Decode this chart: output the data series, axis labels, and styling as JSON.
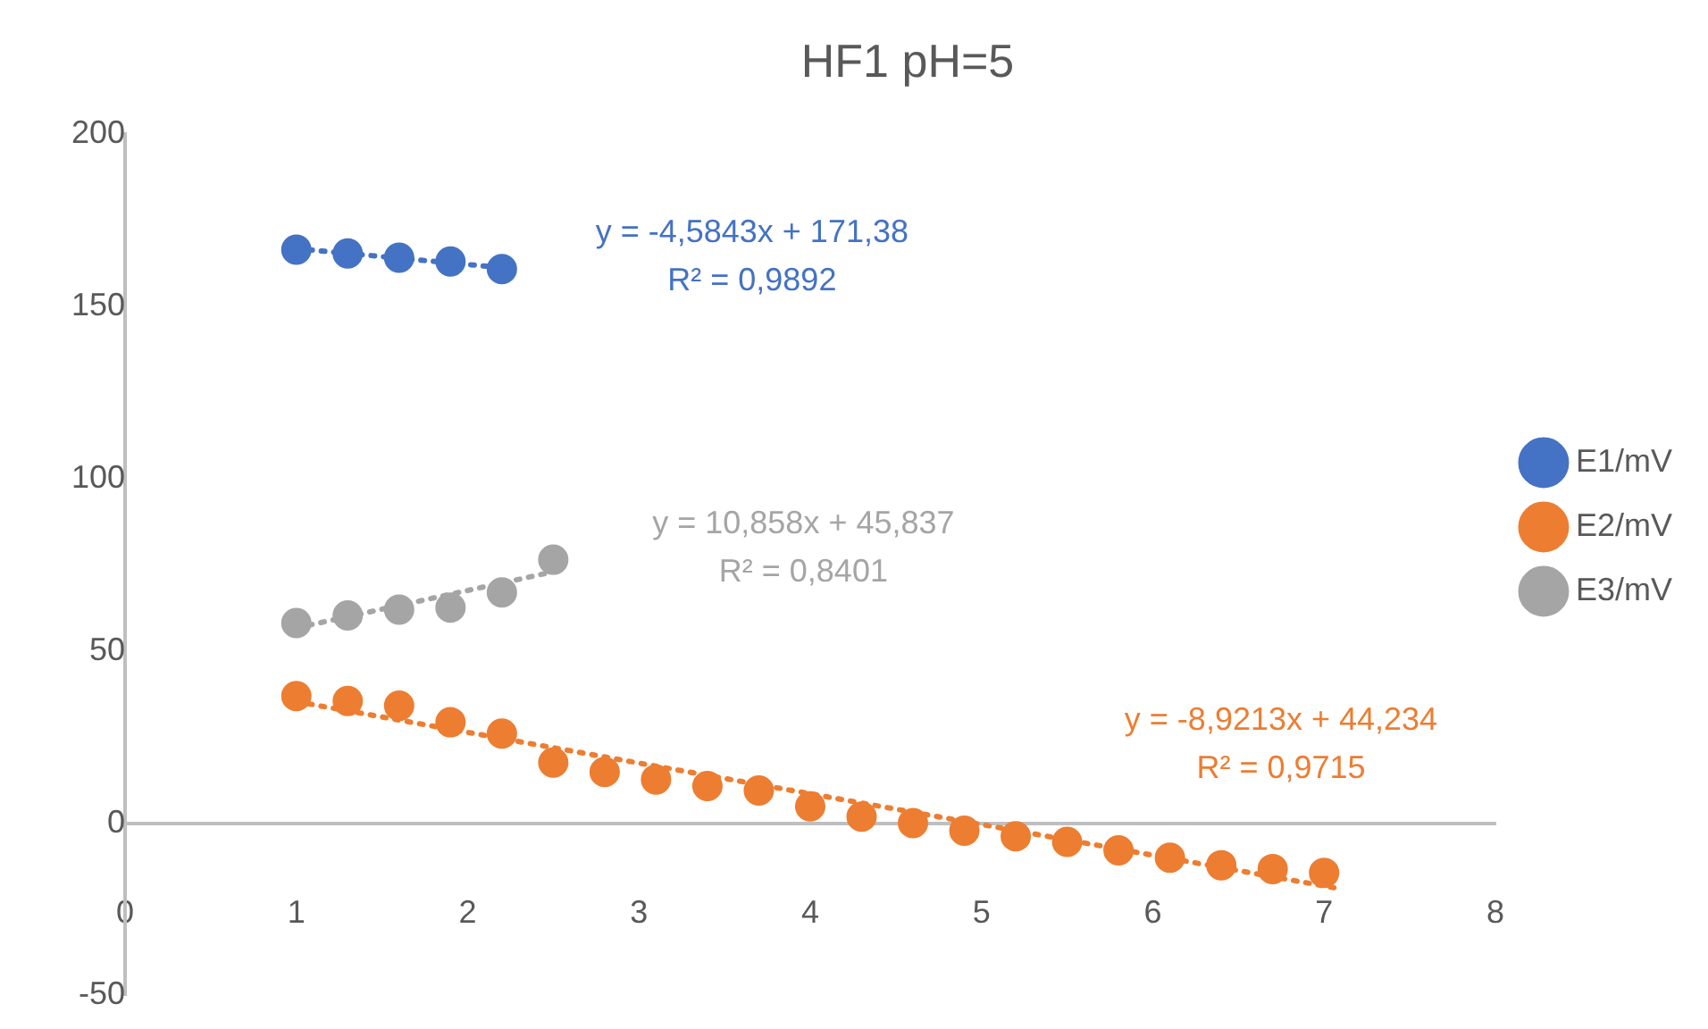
{
  "chart_data": {
    "type": "scatter",
    "title": "HF1 pH=5",
    "marker": "circle",
    "legend": "right",
    "grid": false,
    "xlim": [
      0,
      8
    ],
    "xticks": [
      0,
      1,
      2,
      3,
      4,
      5,
      6,
      7,
      8
    ],
    "ylim": [
      -50,
      200
    ],
    "yticks": [
      -50,
      0,
      50,
      100,
      150,
      200
    ],
    "series": [
      {
        "name": "E1/mV",
        "color": "#4472c4",
        "x": [
          1,
          1.3,
          1.6,
          1.9,
          2.2
        ],
        "values": [
          166.5,
          165.4,
          164.2,
          163.1,
          160.9
        ]
      },
      {
        "name": "E2/mV",
        "color": "#ed7d31",
        "x": [
          1,
          1.3,
          1.6,
          1.9,
          2.2,
          2.5,
          2.8,
          3.1,
          3.4,
          3.7,
          4,
          4.3,
          4.6,
          4.9,
          5.2,
          5.5,
          5.8,
          6.1,
          6.4,
          6.7,
          7
        ],
        "values": [
          36.9,
          35.5,
          34.1,
          29.3,
          26.0,
          17.6,
          14.9,
          12.7,
          10.8,
          9.5,
          4.9,
          1.9,
          0,
          -2.2,
          -3.8,
          -5.4,
          -7.9,
          -10.0,
          -12.2,
          -13.3,
          -14.4
        ]
      },
      {
        "name": "E3/mV",
        "color": "#a5a5a5",
        "x": [
          1,
          1.3,
          1.6,
          1.9,
          2.2,
          2.5
        ],
        "values": [
          58.1,
          60.3,
          62,
          62.6,
          67,
          76.5
        ]
      },
      {
        "type": "line",
        "color": "#4472c4",
        "line_style": "dotted",
        "marker": "none",
        "x": [
          1,
          2.2
        ],
        "values": [
          166.8,
          161.3
        ]
      },
      {
        "type": "line",
        "color": "#ed7d31",
        "line_style": "dotted",
        "marker": "none",
        "x": [
          1,
          7.1
        ],
        "values": [
          35.3,
          -19.1
        ]
      },
      {
        "type": "line",
        "color": "#a5a5a5",
        "line_style": "dotted",
        "marker": "none",
        "x": [
          1,
          2.5
        ],
        "values": [
          56.7,
          73.0
        ]
      }
    ],
    "annotations": [
      "y = -4,5843x + 171,38\nR² = 0,9892",
      "y = -8,9213x + 44,234\nR² = 0,9715",
      "y = 10,858x + 45,837\nR² = 0,8401"
    ]
  }
}
